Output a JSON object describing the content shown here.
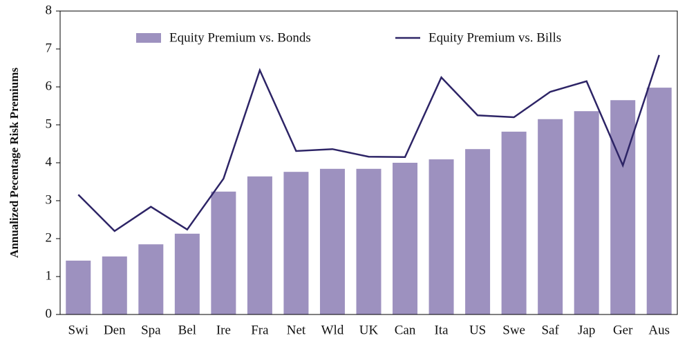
{
  "chart_data": {
    "type": "bar",
    "y_label": "Annualized Pecentage Risk Premiums",
    "categories": [
      "Swi",
      "Den",
      "Spa",
      "Bel",
      "Ire",
      "Fra",
      "Net",
      "Wld",
      "UK",
      "Can",
      "Ita",
      "US",
      "Swe",
      "Saf",
      "Jap",
      "Ger",
      "Aus"
    ],
    "series": [
      {
        "name": "Equity Premium vs. Bonds",
        "type": "bar",
        "color": "#9d91bf",
        "values": [
          1.42,
          1.53,
          1.85,
          2.13,
          3.24,
          3.64,
          3.76,
          3.84,
          3.84,
          4.0,
          4.09,
          4.36,
          4.82,
          5.15,
          5.36,
          5.65,
          5.98
        ]
      },
      {
        "name": "Equity Premium vs. Bills",
        "type": "line",
        "color": "#2d2466",
        "values": [
          3.16,
          2.2,
          2.84,
          2.24,
          3.58,
          6.44,
          4.31,
          4.36,
          4.16,
          4.15,
          6.25,
          5.25,
          5.2,
          5.87,
          6.15,
          3.93,
          6.84
        ]
      }
    ],
    "ylim": [
      0,
      8
    ],
    "yticks": [
      0,
      1,
      2,
      3,
      4,
      5,
      6,
      7,
      8
    ],
    "grid": false
  }
}
